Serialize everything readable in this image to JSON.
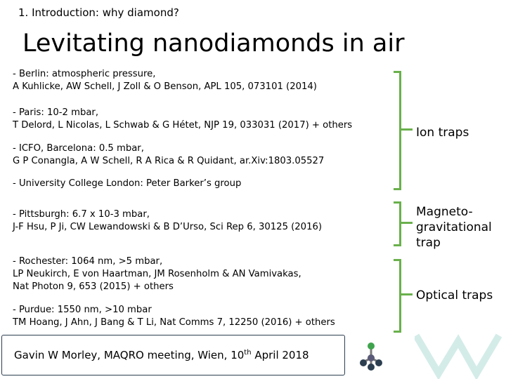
{
  "header": {
    "section": "1. Introduction: why diamond?",
    "title": "Levitating nanodiamonds in air"
  },
  "refs": [
    {
      "l1": "- Berlin: atmospheric pressure,",
      "l2": "A Kuhlicke, AW Schell, J Zoll & O Benson, APL 105, 073101 (2014)"
    },
    {
      "l1": "- Paris: 10-2 mbar,",
      "l2": "T Delord, L Nicolas, L Schwab & G Hétet, NJP 19, 033031 (2017) + others"
    },
    {
      "l1": "- ICFO, Barcelona: 0.5 mbar,",
      "l2": "G P Conangla, A W Schell, R A Rica & R Quidant, ar.Xiv:1803.05527"
    },
    {
      "l1": "- University College London: Peter Barker’s group",
      "l2": ""
    },
    {
      "l1": "- Pittsburgh: 6.7 x 10-3 mbar,",
      "l2": "J-F Hsu, P Ji, CW Lewandowski & B D’Urso, Sci Rep 6, 30125 (2016)"
    },
    {
      "l1": "- Rochester: 1064 nm, >5 mbar,",
      "l2": "LP Neukirch, E von Haartman, JM Rosenholm & AN Vamivakas,",
      "l3": "Nat Photon 9, 653 (2015) + others"
    },
    {
      "l1": "- Purdue: 1550 nm, >10 mbar",
      "l2": "TM Hoang, J Ahn, J Bang & T Li, Nat Comms 7, 12250 (2016) + others"
    }
  ],
  "traps": {
    "ion": "Ion traps",
    "magneto": [
      "Magneto-",
      "gravitational",
      "trap"
    ],
    "optical": "Optical traps"
  },
  "footer": {
    "text_pre": "Gavin W Morley, MAQRO meeting, Wien, 10",
    "sup": "th",
    "text_post": " April 2018"
  },
  "colors": {
    "bracket": "#6ab04c",
    "footer_border": "#2c3e50"
  }
}
